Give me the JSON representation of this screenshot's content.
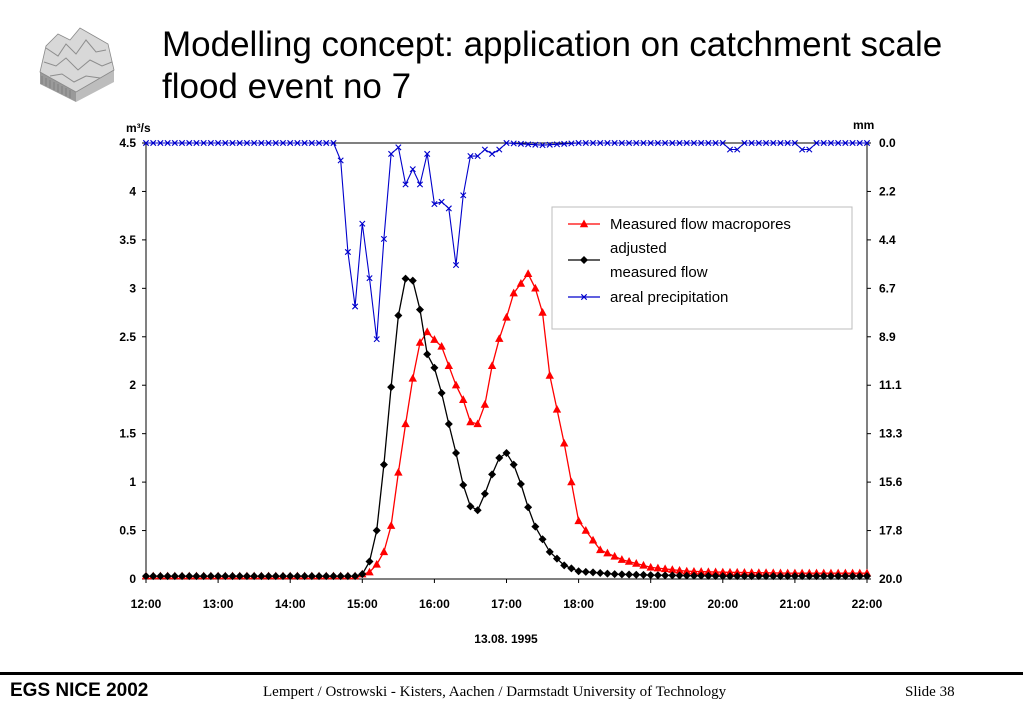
{
  "slide": {
    "title_line1": "Modelling concept: application on catchment scale",
    "title_line2": "flood event no 7"
  },
  "footer": {
    "conference": "EGS NICE 2002",
    "authors": "Lempert / Ostrowski  - Kisters, Aachen / Darmstadt University of Technology",
    "slide_label": "Slide  38"
  },
  "chart_data": {
    "type": "line",
    "title": "",
    "xlabel": "13.08. 1995",
    "ylabel_left": "m³/s",
    "ylabel_right": "mm",
    "x_tick_labels": [
      "12:00",
      "13:00",
      "14:00",
      "15:00",
      "16:00",
      "17:00",
      "18:00",
      "19:00",
      "20:00",
      "21:00",
      "22:00"
    ],
    "x_range_hours": [
      12,
      22
    ],
    "ylim_left": [
      0,
      4.5
    ],
    "y_ticks_left": [
      "0",
      "0.5",
      "1",
      "1.5",
      "2",
      "2.5",
      "3",
      "3.5",
      "4",
      "4.5"
    ],
    "ylim_right_inverted": [
      0,
      20
    ],
    "y_ticks_right": [
      "0.0",
      "2.2",
      "4.4",
      "6.7",
      "8.9",
      "11.1",
      "13.3",
      "15.6",
      "17.8",
      "20.0"
    ],
    "legend_position": "upper-right",
    "series": [
      {
        "name": "Measured flow macropores adjusted",
        "axis": "left",
        "color": "#ff0000",
        "marker": "triangle",
        "x": [
          12.0,
          13.0,
          14.0,
          14.9,
          15.1,
          15.2,
          15.3,
          15.4,
          15.5,
          15.6,
          15.7,
          15.8,
          15.9,
          16.0,
          16.1,
          16.2,
          16.3,
          16.4,
          16.5,
          16.6,
          16.7,
          16.8,
          16.9,
          17.0,
          17.1,
          17.2,
          17.3,
          17.4,
          17.5,
          17.6,
          17.8,
          18.0,
          18.3,
          18.6,
          19.0,
          19.5,
          20.0,
          21.0,
          22.0
        ],
        "y": [
          0.03,
          0.03,
          0.03,
          0.03,
          0.07,
          0.15,
          0.28,
          0.55,
          1.1,
          1.6,
          2.07,
          2.44,
          2.55,
          2.47,
          2.4,
          2.2,
          2.0,
          1.85,
          1.62,
          1.6,
          1.8,
          2.2,
          2.48,
          2.7,
          2.95,
          3.05,
          3.15,
          3.0,
          2.75,
          2.1,
          1.4,
          0.6,
          0.3,
          0.2,
          0.12,
          0.08,
          0.07,
          0.06,
          0.06
        ]
      },
      {
        "name": "measured flow",
        "axis": "left",
        "color": "#000000",
        "marker": "diamond",
        "x": [
          12.0,
          13.0,
          14.0,
          14.9,
          15.0,
          15.1,
          15.2,
          15.3,
          15.4,
          15.5,
          15.6,
          15.7,
          15.8,
          15.9,
          16.0,
          16.1,
          16.2,
          16.3,
          16.4,
          16.5,
          16.6,
          16.7,
          16.8,
          16.9,
          17.0,
          17.1,
          17.2,
          17.3,
          17.4,
          17.6,
          17.8,
          18.0,
          18.5,
          19.0,
          20.0,
          21.0,
          22.0
        ],
        "y": [
          0.03,
          0.03,
          0.03,
          0.03,
          0.05,
          0.18,
          0.5,
          1.18,
          1.98,
          2.72,
          3.1,
          3.08,
          2.78,
          2.32,
          2.18,
          1.92,
          1.6,
          1.3,
          0.97,
          0.75,
          0.71,
          0.88,
          1.08,
          1.25,
          1.3,
          1.18,
          0.98,
          0.74,
          0.54,
          0.28,
          0.14,
          0.08,
          0.05,
          0.04,
          0.03,
          0.03,
          0.03
        ]
      },
      {
        "name": "areal precipitation",
        "axis": "right",
        "color": "#0000cc",
        "marker": "x",
        "x": [
          12.0,
          13.0,
          14.0,
          14.6,
          14.7,
          14.8,
          14.9,
          15.0,
          15.1,
          15.2,
          15.3,
          15.4,
          15.5,
          15.6,
          15.7,
          15.8,
          15.9,
          16.0,
          16.1,
          16.2,
          16.3,
          16.4,
          16.5,
          16.6,
          16.7,
          16.8,
          16.9,
          17.0,
          17.5,
          18.0,
          19.0,
          20.0,
          20.1,
          20.2,
          20.3,
          21.0,
          21.1,
          21.2,
          21.3,
          22.0
        ],
        "y": [
          0.0,
          0.0,
          0.0,
          0.0,
          0.8,
          5.0,
          7.5,
          3.7,
          6.2,
          9.0,
          4.4,
          0.5,
          0.2,
          1.9,
          1.2,
          1.9,
          0.5,
          2.8,
          2.7,
          3.0,
          5.6,
          2.4,
          0.6,
          0.6,
          0.3,
          0.5,
          0.3,
          0.0,
          0.1,
          0.0,
          0.0,
          0.0,
          0.3,
          0.3,
          0.0,
          0.0,
          0.3,
          0.3,
          0.0,
          0.0
        ]
      }
    ]
  }
}
